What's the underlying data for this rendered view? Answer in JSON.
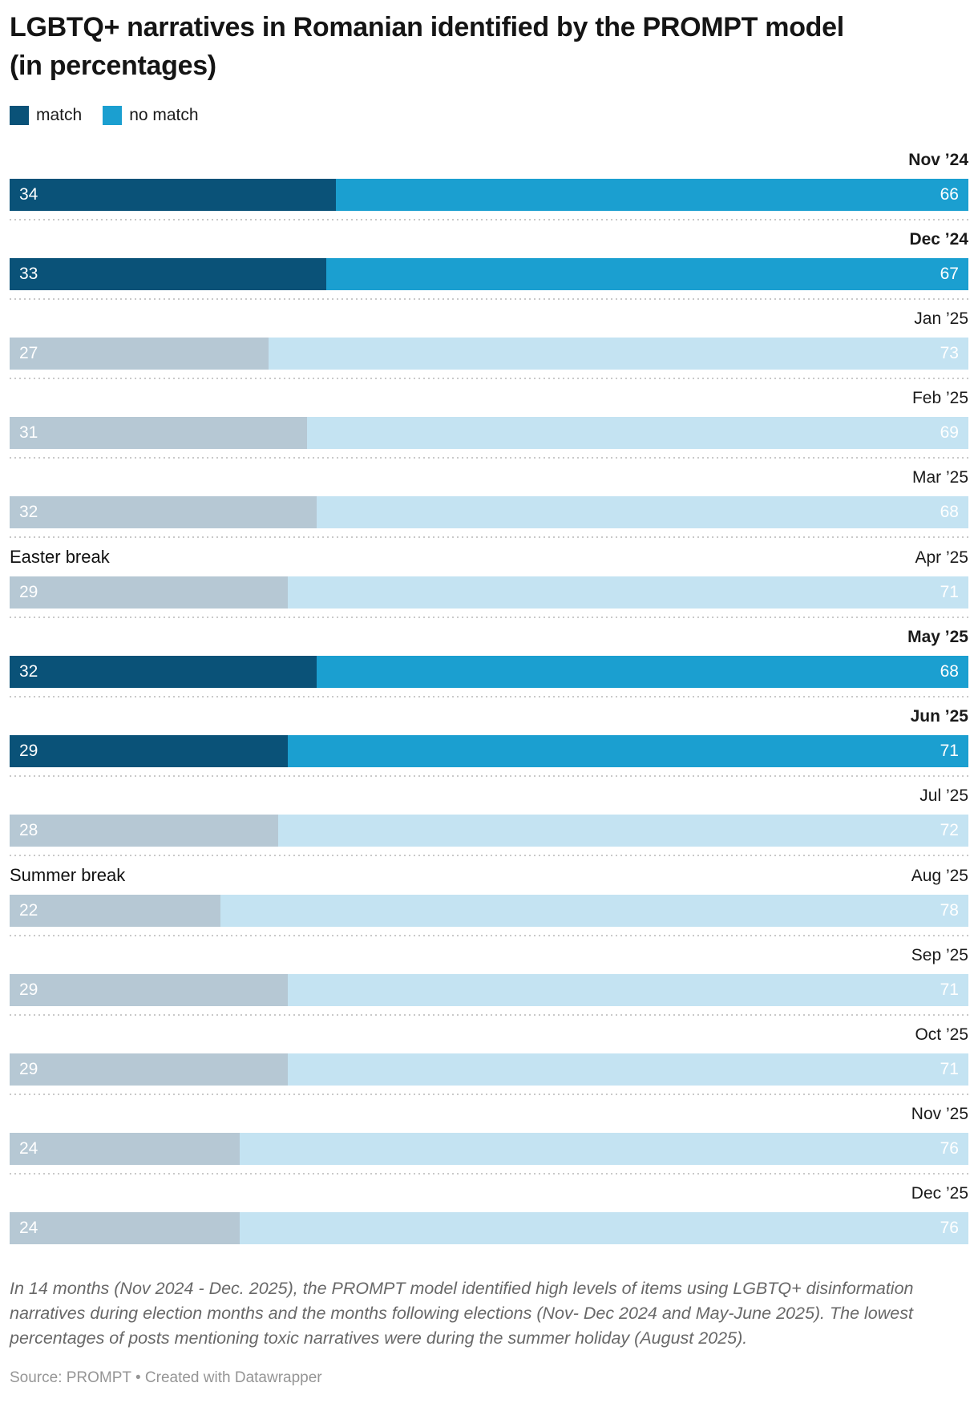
{
  "header": {
    "title": "LGBTQ+ narratives in Romanian identified by the PROMPT model (in percentages)"
  },
  "legend": {
    "items": [
      {
        "label": "match",
        "color": "#0a5278"
      },
      {
        "label": "no match",
        "color": "#1b9fd0"
      }
    ]
  },
  "colors": {
    "match_active": "#0a5278",
    "no_match_active": "#1b9fd0",
    "match_muted": "#b6c8d4",
    "no_match_muted": "#c4e3f2",
    "value_label": "#ffffff",
    "separator": "#c9c9c9"
  },
  "chart_data": {
    "type": "bar",
    "variant": "horizontal-stacked",
    "unit": "percent",
    "xlim": [
      0,
      100
    ],
    "grid": false,
    "legend_position": "top",
    "title": "LGBTQ+ narratives in Romanian identified by the PROMPT model (in percentages)",
    "categories": [
      "Nov ’24",
      "Dec ’24",
      "Jan ’25",
      "Feb ’25",
      "Mar ’25",
      "Apr ’25",
      "May ’25",
      "Jun ’25",
      "Jul ’25",
      "Aug ’25",
      "Sep ’25",
      "Oct ’25",
      "Nov ’25",
      "Dec ’25"
    ],
    "series": [
      {
        "name": "match",
        "values": [
          34,
          33,
          27,
          31,
          32,
          29,
          32,
          29,
          28,
          22,
          29,
          29,
          24,
          24
        ]
      },
      {
        "name": "no match",
        "values": [
          66,
          67,
          73,
          69,
          68,
          71,
          68,
          71,
          72,
          78,
          71,
          71,
          76,
          76
        ]
      }
    ],
    "highlighted_categories": [
      "Nov ’24",
      "Dec ’24",
      "May ’25",
      "Jun ’25"
    ],
    "annotations": [
      {
        "text": "Easter break",
        "category": "Apr ’25"
      },
      {
        "text": "Summer break",
        "category": "Aug ’25"
      }
    ]
  },
  "footer": {
    "notes": "In 14 months (Nov 2024 - Dec. 2025), the PROMPT model identified high levels of items using LGBTQ+ disinformation narratives during election months and the months following elections (Nov- Dec 2024 and May-June 2025). The lowest percentages of posts mentioning toxic narratives were during the summer holiday (August 2025).",
    "source": "Source: PROMPT • Created with Datawrapper"
  }
}
